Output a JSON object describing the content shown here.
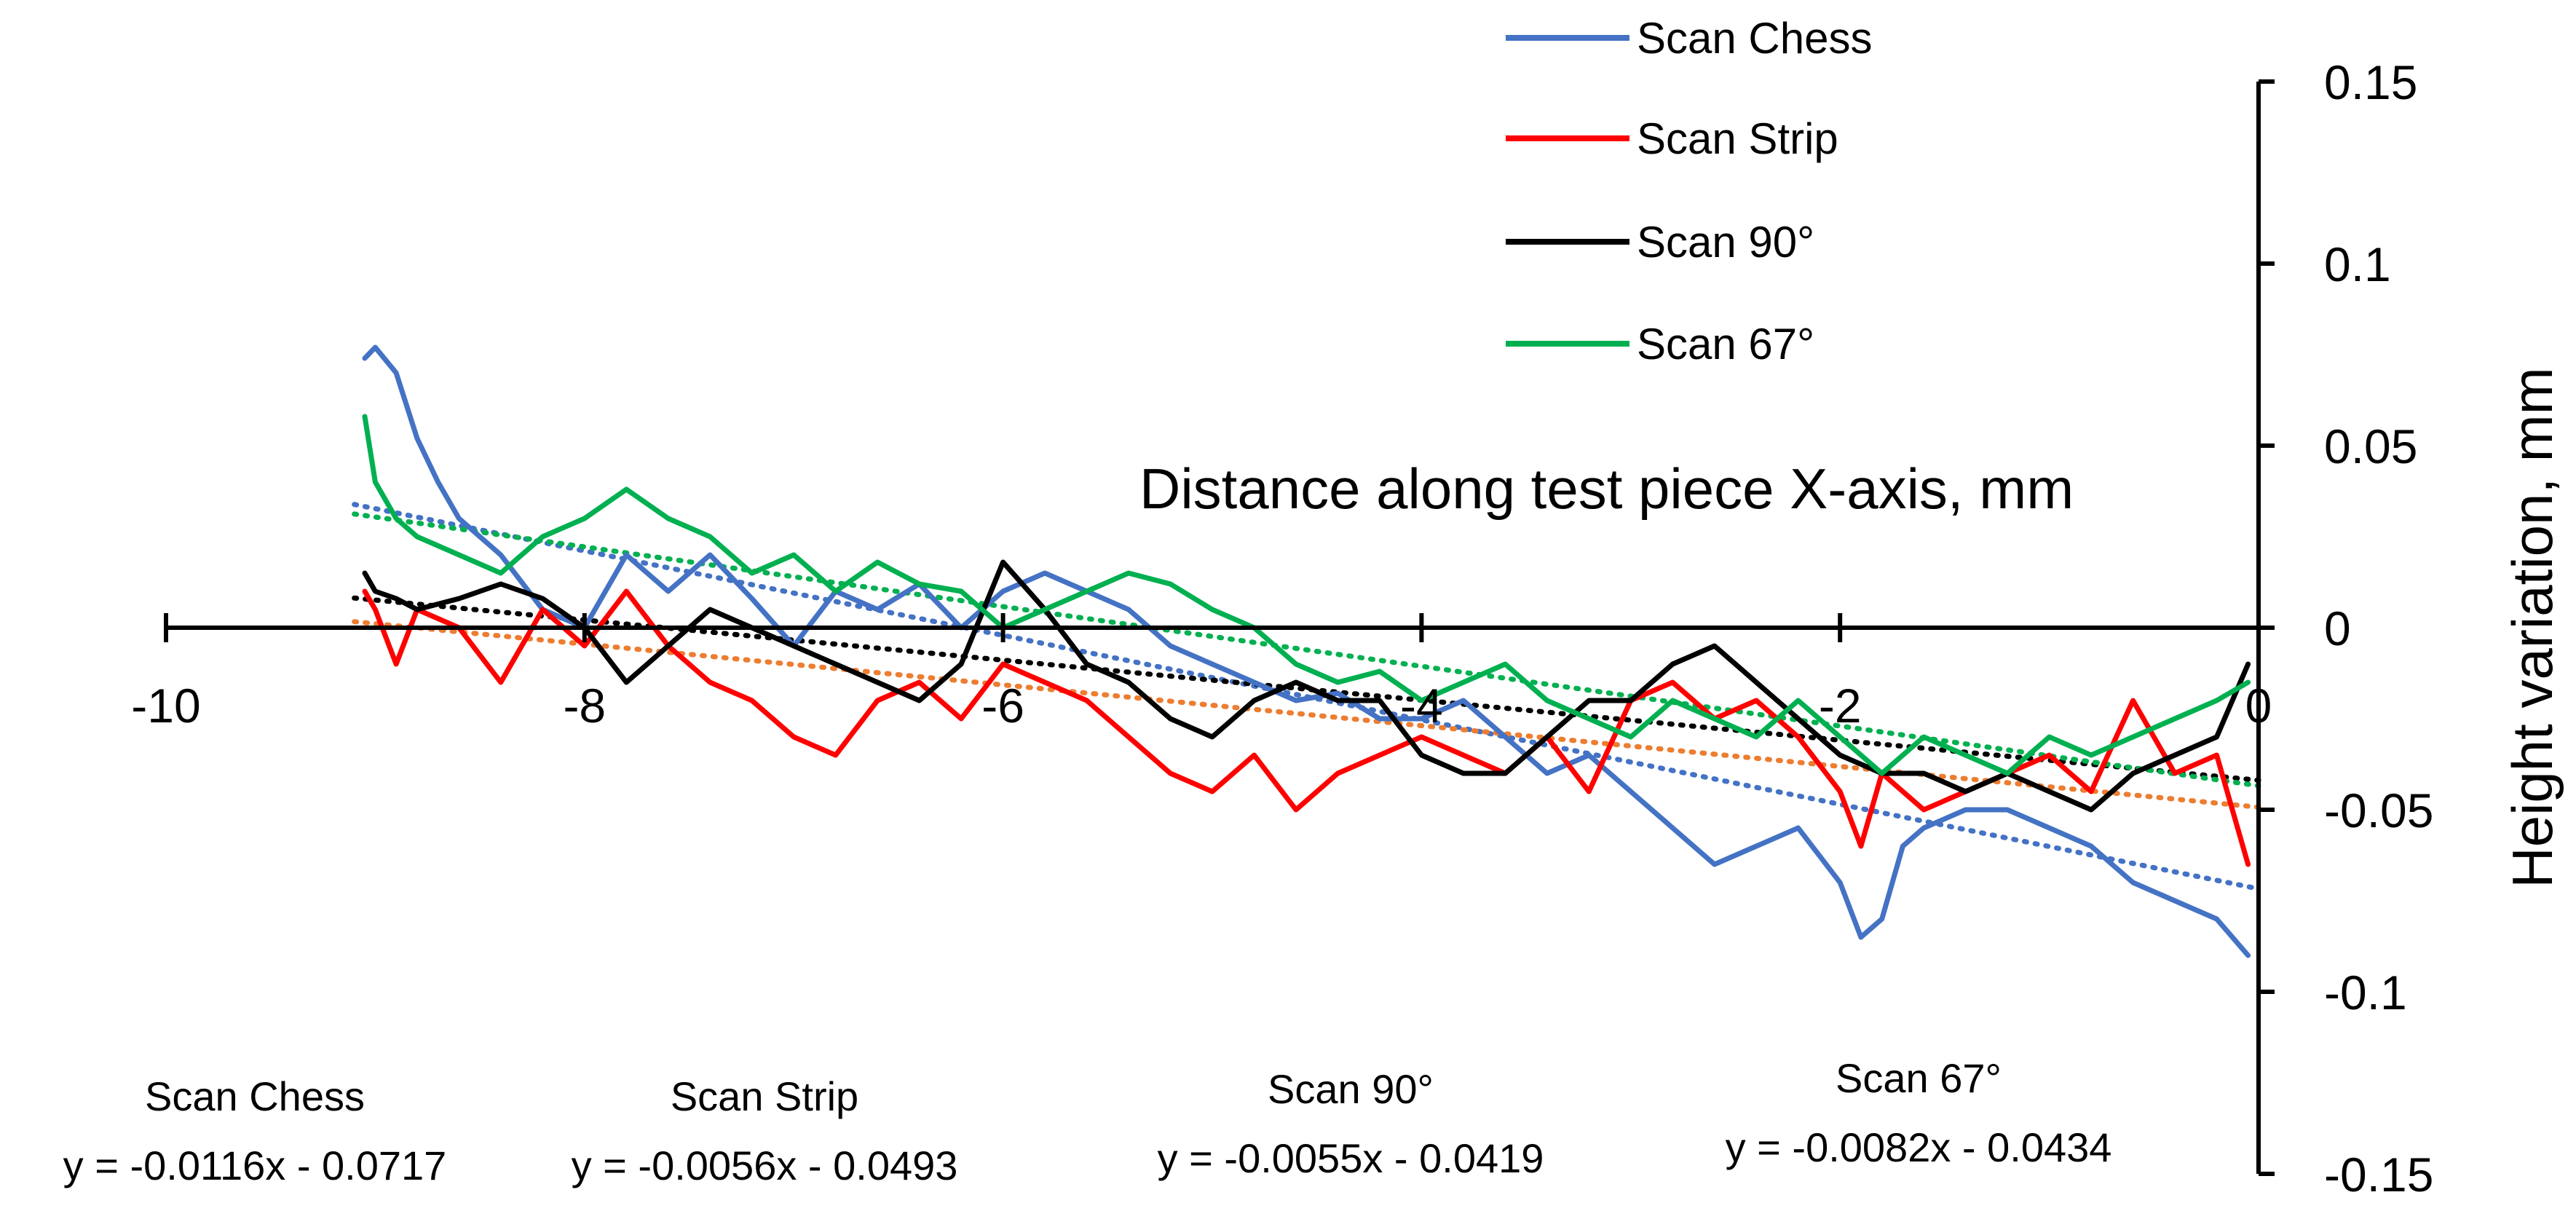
{
  "chart_data": {
    "type": "line",
    "title": "",
    "xlabel": "Distance along test piece X-axis, mm",
    "ylabel": "Height variation, mm",
    "xlim": [
      -10,
      0
    ],
    "ylim": [
      -0.15,
      0.15
    ],
    "x_ticks": [
      -10,
      -8,
      -6,
      -4,
      -2,
      0
    ],
    "x_tick_labels": [
      "-10",
      "-8",
      "-6",
      "-4",
      "-2",
      "0"
    ],
    "y_ticks": [
      0.15,
      0.1,
      0.05,
      0,
      -0.05,
      -0.1,
      -0.15
    ],
    "y_tick_labels": [
      "0.15",
      "0.1",
      "0.05",
      "0",
      "-0.05",
      "-0.1",
      "-0.15"
    ],
    "legend_position": "top-right",
    "series": [
      {
        "name": "Scan Chess",
        "color": "#4472C4",
        "x": [
          -9.05,
          -9.0,
          -8.9,
          -8.8,
          -8.7,
          -8.6,
          -8.4,
          -8.2,
          -8.0,
          -7.8,
          -7.6,
          -7.4,
          -7.2,
          -7.0,
          -6.8,
          -6.6,
          -6.4,
          -6.2,
          -6.0,
          -5.8,
          -5.6,
          -5.4,
          -5.2,
          -5.0,
          -4.8,
          -4.6,
          -4.4,
          -4.2,
          -4.0,
          -3.8,
          -3.6,
          -3.4,
          -3.2,
          -3.0,
          -2.8,
          -2.6,
          -2.4,
          -2.2,
          -2.0,
          -1.9,
          -1.8,
          -1.7,
          -1.6,
          -1.4,
          -1.2,
          -1.0,
          -0.8,
          -0.6,
          -0.4,
          -0.2,
          -0.05
        ],
        "y": [
          0.074,
          0.077,
          0.07,
          0.052,
          0.04,
          0.03,
          0.02,
          0.005,
          0.0,
          0.02,
          0.01,
          0.02,
          0.008,
          -0.005,
          0.01,
          0.005,
          0.012,
          0.0,
          0.01,
          0.015,
          0.01,
          0.005,
          -0.005,
          -0.01,
          -0.015,
          -0.02,
          -0.018,
          -0.025,
          -0.025,
          -0.02,
          -0.03,
          -0.04,
          -0.035,
          -0.045,
          -0.055,
          -0.065,
          -0.06,
          -0.055,
          -0.07,
          -0.085,
          -0.08,
          -0.06,
          -0.055,
          -0.05,
          -0.05,
          -0.055,
          -0.06,
          -0.07,
          -0.075,
          -0.08,
          -0.09
        ]
      },
      {
        "name": "Scan Strip",
        "color": "#FF0000",
        "x": [
          -9.05,
          -9.0,
          -8.9,
          -8.8,
          -8.6,
          -8.4,
          -8.2,
          -8.0,
          -7.8,
          -7.6,
          -7.4,
          -7.2,
          -7.0,
          -6.8,
          -6.6,
          -6.4,
          -6.2,
          -6.0,
          -5.8,
          -5.6,
          -5.4,
          -5.2,
          -5.0,
          -4.8,
          -4.6,
          -4.4,
          -4.2,
          -4.0,
          -3.8,
          -3.6,
          -3.4,
          -3.2,
          -3.0,
          -2.8,
          -2.6,
          -2.4,
          -2.2,
          -2.0,
          -1.9,
          -1.8,
          -1.6,
          -1.4,
          -1.2,
          -1.0,
          -0.8,
          -0.6,
          -0.4,
          -0.2,
          -0.05
        ],
        "y": [
          0.01,
          0.005,
          -0.01,
          0.005,
          0.0,
          -0.015,
          0.005,
          -0.005,
          0.01,
          -0.005,
          -0.015,
          -0.02,
          -0.03,
          -0.035,
          -0.02,
          -0.015,
          -0.025,
          -0.01,
          -0.015,
          -0.02,
          -0.03,
          -0.04,
          -0.045,
          -0.035,
          -0.05,
          -0.04,
          -0.035,
          -0.03,
          -0.035,
          -0.04,
          -0.03,
          -0.045,
          -0.02,
          -0.015,
          -0.025,
          -0.02,
          -0.03,
          -0.045,
          -0.06,
          -0.04,
          -0.05,
          -0.045,
          -0.04,
          -0.035,
          -0.045,
          -0.02,
          -0.04,
          -0.035,
          -0.065
        ]
      },
      {
        "name": "Scan 90°",
        "color": "#000000",
        "x": [
          -9.05,
          -9.0,
          -8.9,
          -8.8,
          -8.6,
          -8.4,
          -8.2,
          -8.0,
          -7.8,
          -7.6,
          -7.4,
          -7.2,
          -7.0,
          -6.8,
          -6.6,
          -6.4,
          -6.2,
          -6.0,
          -5.8,
          -5.6,
          -5.4,
          -5.2,
          -5.0,
          -4.8,
          -4.6,
          -4.4,
          -4.2,
          -4.0,
          -3.8,
          -3.6,
          -3.4,
          -3.2,
          -3.0,
          -2.8,
          -2.6,
          -2.4,
          -2.2,
          -2.0,
          -1.8,
          -1.6,
          -1.4,
          -1.2,
          -1.0,
          -0.8,
          -0.6,
          -0.4,
          -0.2,
          -0.05
        ],
        "y": [
          0.015,
          0.01,
          0.008,
          0.005,
          0.008,
          0.012,
          0.008,
          0.0,
          -0.015,
          -0.005,
          0.005,
          0.0,
          -0.005,
          -0.01,
          -0.015,
          -0.02,
          -0.01,
          0.018,
          0.005,
          -0.01,
          -0.015,
          -0.025,
          -0.03,
          -0.02,
          -0.015,
          -0.02,
          -0.02,
          -0.035,
          -0.04,
          -0.04,
          -0.03,
          -0.02,
          -0.02,
          -0.01,
          -0.005,
          -0.015,
          -0.025,
          -0.035,
          -0.04,
          -0.04,
          -0.045,
          -0.04,
          -0.045,
          -0.05,
          -0.04,
          -0.035,
          -0.03,
          -0.01
        ]
      },
      {
        "name": "Scan 67°",
        "color": "#00B050",
        "x": [
          -9.05,
          -9.0,
          -8.9,
          -8.8,
          -8.6,
          -8.4,
          -8.2,
          -8.0,
          -7.8,
          -7.6,
          -7.4,
          -7.2,
          -7.0,
          -6.8,
          -6.6,
          -6.4,
          -6.2,
          -6.0,
          -5.8,
          -5.6,
          -5.4,
          -5.2,
          -5.0,
          -4.8,
          -4.6,
          -4.4,
          -4.2,
          -4.0,
          -3.8,
          -3.6,
          -3.4,
          -3.2,
          -3.0,
          -2.8,
          -2.6,
          -2.4,
          -2.2,
          -2.0,
          -1.8,
          -1.6,
          -1.4,
          -1.2,
          -1.0,
          -0.8,
          -0.6,
          -0.4,
          -0.2,
          -0.05
        ],
        "y": [
          0.058,
          0.04,
          0.03,
          0.025,
          0.02,
          0.015,
          0.025,
          0.03,
          0.038,
          0.03,
          0.025,
          0.015,
          0.02,
          0.01,
          0.018,
          0.012,
          0.01,
          0.0,
          0.005,
          0.01,
          0.015,
          0.012,
          0.005,
          0.0,
          -0.01,
          -0.015,
          -0.012,
          -0.02,
          -0.015,
          -0.01,
          -0.02,
          -0.025,
          -0.03,
          -0.02,
          -0.025,
          -0.03,
          -0.02,
          -0.03,
          -0.04,
          -0.03,
          -0.035,
          -0.04,
          -0.03,
          -0.035,
          -0.03,
          -0.025,
          -0.02,
          -0.015
        ]
      }
    ],
    "trendlines": [
      {
        "series": "Scan Chess",
        "slope": -0.0116,
        "intercept": -0.0717,
        "equation": "y = -0.0116x - 0.0717",
        "color": "#4472C4",
        "x_range": [
          -9.1,
          0
        ]
      },
      {
        "series": "Scan Strip",
        "slope": -0.0056,
        "intercept": -0.0493,
        "equation": "y = -0.0056x - 0.0493",
        "color": "#ED7D31",
        "x_range": [
          -9.1,
          0
        ]
      },
      {
        "series": "Scan 90°",
        "slope": -0.0055,
        "intercept": -0.0419,
        "equation": "y = -0.0055x - 0.0419",
        "color": "#000000",
        "x_range": [
          -9.1,
          0
        ]
      },
      {
        "series": "Scan 67°",
        "slope": -0.0082,
        "intercept": -0.0434,
        "equation": "y = -0.0082x - 0.0434",
        "color": "#00B050",
        "x_range": [
          -9.1,
          0
        ]
      }
    ]
  }
}
